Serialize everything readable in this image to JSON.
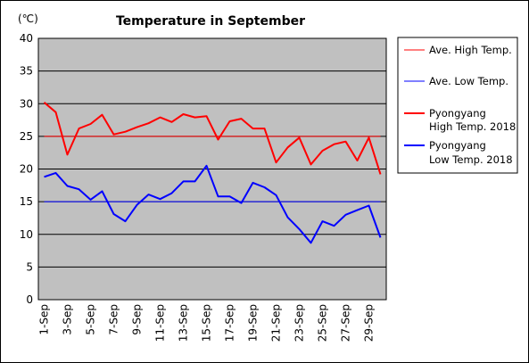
{
  "chart_data": {
    "type": "line",
    "title": "Temperature in September",
    "unit_label": "(℃)",
    "ylim": [
      0,
      40
    ],
    "y_ticks": [
      0,
      5,
      10,
      15,
      20,
      25,
      30,
      35,
      40
    ],
    "x": [
      "1-Sep",
      "2-Sep",
      "3-Sep",
      "4-Sep",
      "5-Sep",
      "6-Sep",
      "7-Sep",
      "8-Sep",
      "9-Sep",
      "10-Sep",
      "11-Sep",
      "12-Sep",
      "13-Sep",
      "14-Sep",
      "15-Sep",
      "16-Sep",
      "17-Sep",
      "18-Sep",
      "19-Sep",
      "20-Sep",
      "21-Sep",
      "22-Sep",
      "23-Sep",
      "24-Sep",
      "25-Sep",
      "26-Sep",
      "27-Sep",
      "28-Sep",
      "29-Sep",
      "30-Sep"
    ],
    "x_tick_labels": [
      "1-Sep",
      "3-Sep",
      "5-Sep",
      "7-Sep",
      "9-Sep",
      "11-Sep",
      "13-Sep",
      "15-Sep",
      "17-Sep",
      "19-Sep",
      "21-Sep",
      "23-Sep",
      "25-Sep",
      "27-Sep",
      "29-Sep"
    ],
    "grid": true,
    "legend_position": "right",
    "series": [
      {
        "name": "Ave. High Temp.",
        "color": "#ff0000",
        "width": 1,
        "values": [
          25,
          25,
          25,
          25,
          25,
          25,
          25,
          25,
          25,
          25,
          25,
          25,
          25,
          25,
          25,
          25,
          25,
          25,
          25,
          25,
          25,
          25,
          25,
          25,
          25,
          25,
          25,
          25,
          25,
          25
        ]
      },
      {
        "name": "Ave. Low Temp.",
        "color": "#0000ff",
        "width": 1,
        "values": [
          15,
          15,
          15,
          15,
          15,
          15,
          15,
          15,
          15,
          15,
          15,
          15,
          15,
          15,
          15,
          15,
          15,
          15,
          15,
          15,
          15,
          15,
          15,
          15,
          15,
          15,
          15,
          15,
          15,
          15
        ]
      },
      {
        "name": "Pyongyang High Temp. 2018",
        "legend_lines": [
          "Pyongyang",
          "High Temp. 2018"
        ],
        "color": "#ff0000",
        "width": 2,
        "values": [
          30.2,
          28.7,
          22.2,
          26.2,
          26.9,
          28.3,
          25.3,
          25.7,
          26.4,
          27.0,
          27.9,
          27.2,
          28.4,
          27.9,
          28.1,
          24.5,
          27.3,
          27.7,
          26.2,
          26.2,
          21.0,
          23.3,
          24.8,
          20.7,
          22.8,
          23.8,
          24.2,
          21.3,
          24.8,
          19.2
        ]
      },
      {
        "name": "Pyongyang Low Temp. 2018",
        "legend_lines": [
          "Pyongyang",
          "Low Temp. 2018"
        ],
        "color": "#0000ff",
        "width": 2,
        "values": [
          18.8,
          19.4,
          17.4,
          16.9,
          15.3,
          16.6,
          13.1,
          12.0,
          14.5,
          16.1,
          15.4,
          16.3,
          18.1,
          18.1,
          20.5,
          15.8,
          15.8,
          14.8,
          17.9,
          17.2,
          16.0,
          12.6,
          10.8,
          8.7,
          12.0,
          11.3,
          13.0,
          13.7,
          14.4,
          9.5
        ]
      }
    ]
  }
}
